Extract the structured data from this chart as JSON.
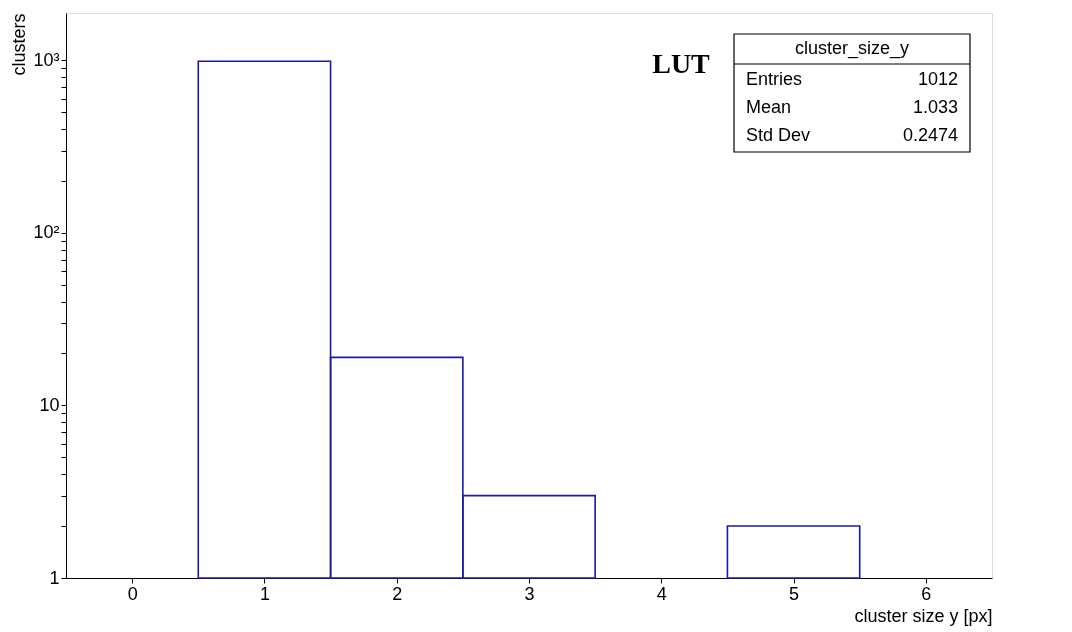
{
  "chart_data": {
    "type": "histogram",
    "xlabel": "cluster size y [px]",
    "ylabel": "clusters",
    "bins": [
      -0.5,
      0.5,
      1.5,
      2.5,
      3.5,
      4.5,
      5.5,
      6.5
    ],
    "values": [
      null,
      988,
      19,
      3,
      null,
      2,
      null
    ],
    "color": "#1a1aa0",
    "log": true,
    "grid": false,
    "xlim": [
      -0.5,
      6.5
    ],
    "xticks": [
      0,
      1,
      2,
      3,
      4,
      5,
      6
    ],
    "ylim": [
      1,
      1880
    ],
    "yticks": [
      1,
      {
        "value": 2,
        "label": null
      },
      {
        "value": 3,
        "label": null
      },
      {
        "value": 4,
        "label": null
      },
      {
        "value": 5,
        "label": null
      },
      {
        "value": 6,
        "label": null
      },
      {
        "value": 7,
        "label": null
      },
      {
        "value": 8,
        "label": null
      },
      {
        "value": 9,
        "label": null
      },
      10,
      {
        "value": 20,
        "label": null
      },
      {
        "value": 30,
        "label": null
      },
      {
        "value": 40,
        "label": null
      },
      {
        "value": 50,
        "label": null
      },
      {
        "value": 60,
        "label": null
      },
      {
        "value": 70,
        "label": null
      },
      {
        "value": 80,
        "label": null
      },
      {
        "value": 90,
        "label": null
      },
      {
        "value": 100,
        "label": "10²"
      },
      {
        "value": 200,
        "label": null
      },
      {
        "value": 300,
        "label": null
      },
      {
        "value": 400,
        "label": null
      },
      {
        "value": 500,
        "label": null
      },
      {
        "value": 600,
        "label": null
      },
      {
        "value": 700,
        "label": null
      },
      {
        "value": 800,
        "label": null
      },
      {
        "value": 900,
        "label": null
      },
      {
        "value": 1000,
        "label": "10³"
      }
    ],
    "annotations": [
      "LUT",
      "cluster_size_y",
      "Entries",
      "1012",
      "Mean",
      "1.033",
      "Std Dev",
      "0.2474"
    ]
  }
}
